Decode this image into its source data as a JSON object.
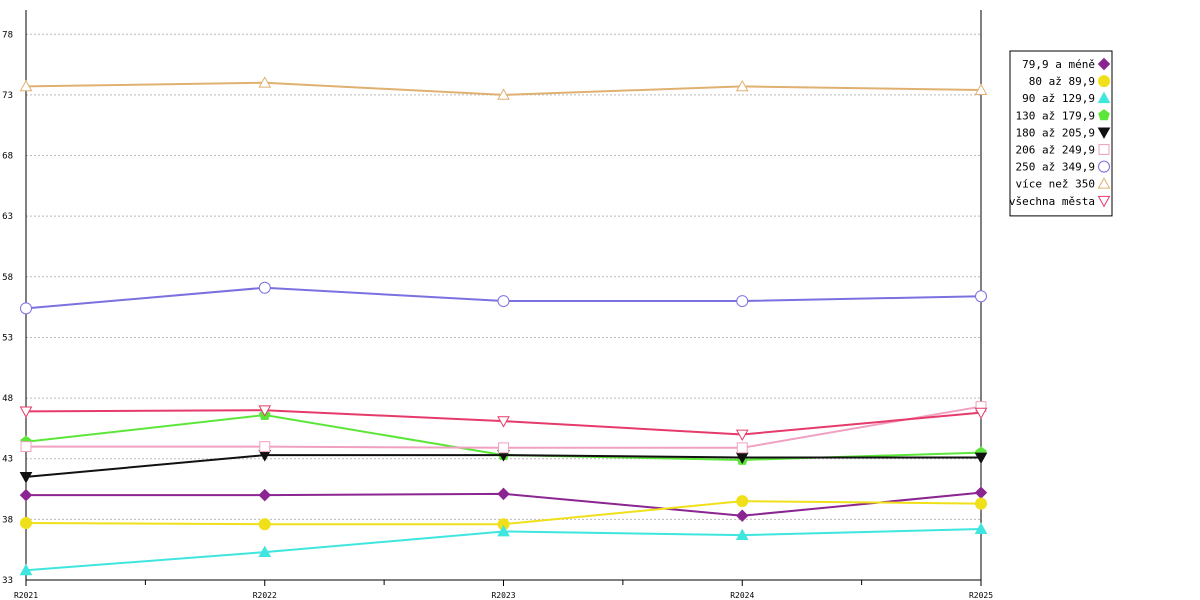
{
  "chart_data": {
    "type": "line",
    "x": [
      "R2021",
      "R2022",
      "R2023",
      "R2024",
      "R2025"
    ],
    "y_ticks": [
      33,
      38,
      43,
      48,
      53,
      58,
      63,
      68,
      73,
      78
    ],
    "ylim": [
      33,
      80
    ],
    "grid": true,
    "legend_position": "top-right",
    "series": [
      {
        "name": "79,9 a méně",
        "color": "#8b2591",
        "marker": "diamond",
        "values": [
          40.0,
          40.0,
          40.1,
          38.3,
          40.2
        ]
      },
      {
        "name": "80 až 89,9",
        "color": "#f0e01a",
        "marker": "circle-filled",
        "values": [
          37.7,
          37.6,
          37.6,
          39.5,
          39.3
        ]
      },
      {
        "name": "90 až 129,9",
        "color": "#3fe6df",
        "marker": "triangle-up-filled",
        "values": [
          33.8,
          35.3,
          37.0,
          36.7,
          37.2
        ]
      },
      {
        "name": "130 až 179,9",
        "color": "#5ce63a",
        "marker": "pentagon-filled",
        "values": [
          44.4,
          46.6,
          43.3,
          42.9,
          43.5
        ]
      },
      {
        "name": "180 až 205,9",
        "color": "#111111",
        "marker": "triangle-down-filled",
        "values": [
          41.5,
          43.3,
          43.3,
          43.1,
          43.1
        ]
      },
      {
        "name": "206 až 249,9",
        "color": "#f0a0c0",
        "marker": "square-open",
        "values": [
          44.0,
          44.0,
          43.9,
          43.9,
          47.3
        ]
      },
      {
        "name": "250 až 349,9",
        "color": "#7b70e0",
        "marker": "circle-open",
        "values": [
          55.4,
          57.1,
          56.0,
          56.0,
          56.4
        ]
      },
      {
        "name": "více než 350",
        "color": "#e0b070",
        "marker": "triangle-up-open",
        "values": [
          73.7,
          74.0,
          73.0,
          73.7,
          73.4
        ]
      },
      {
        "name": "všechna města",
        "color": "#e63a6a",
        "marker": "triangle-down-open",
        "values": [
          46.9,
          47.0,
          46.1,
          45.0,
          46.8
        ]
      }
    ]
  }
}
